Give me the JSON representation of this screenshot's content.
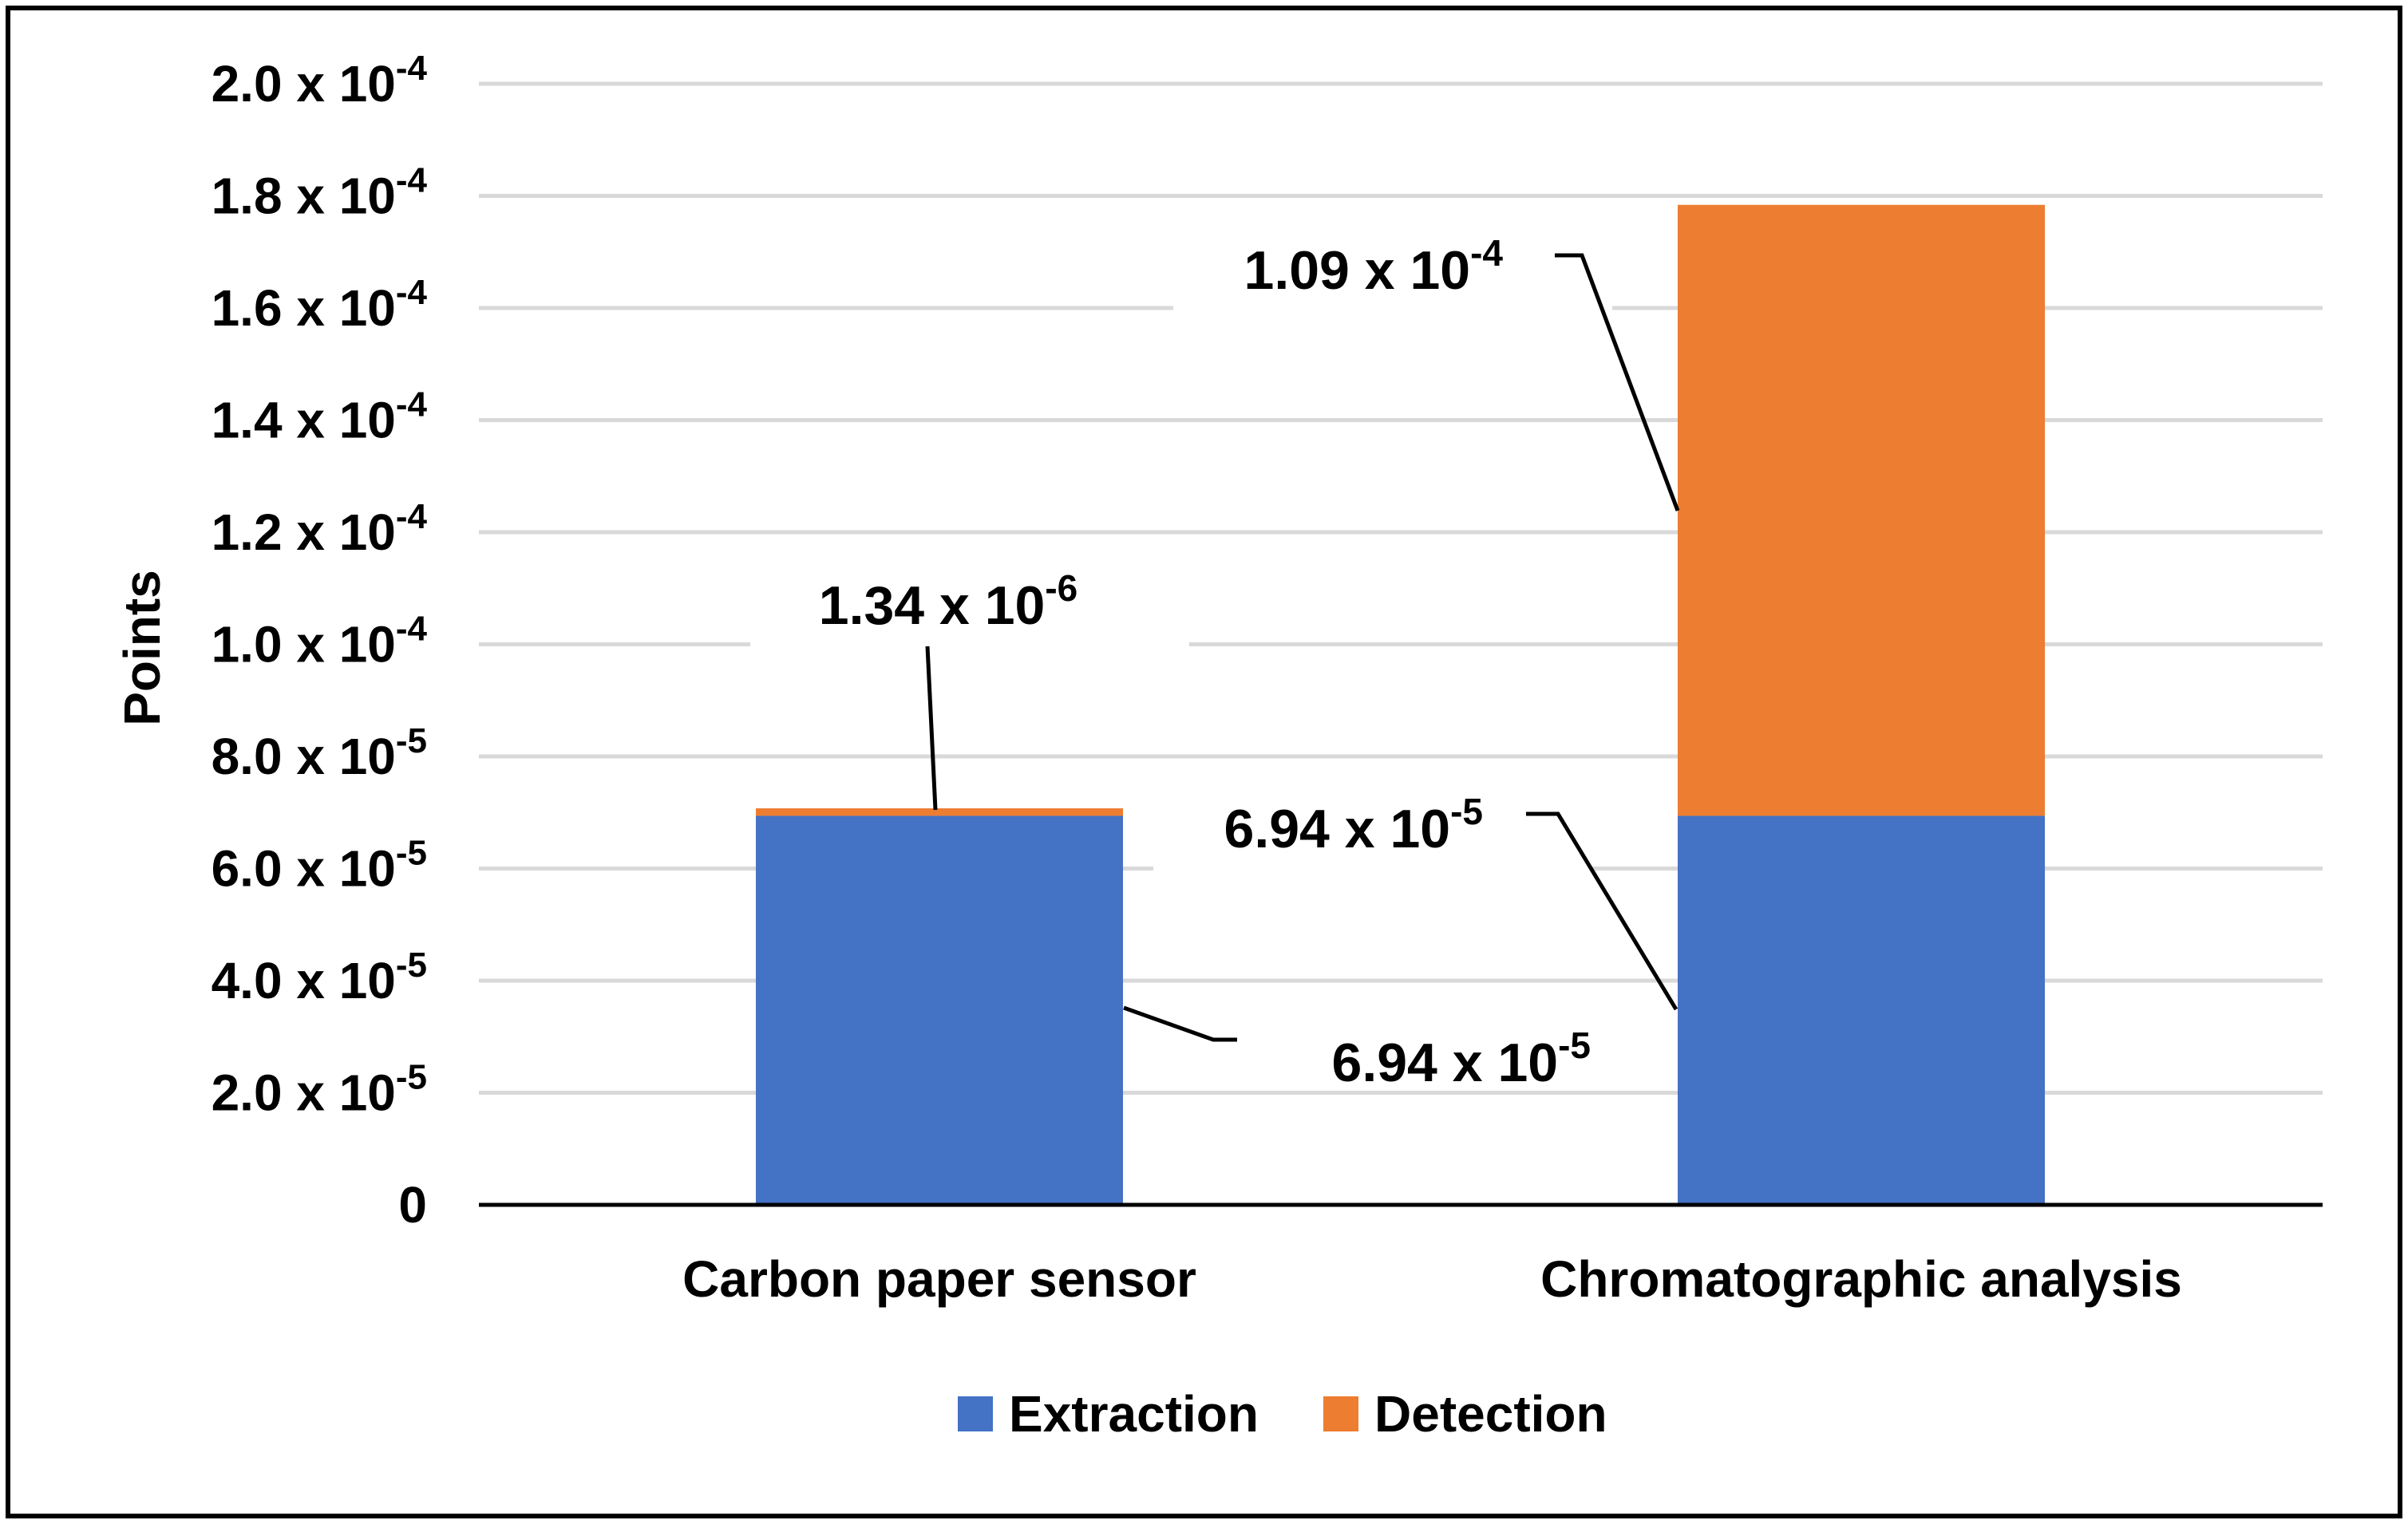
{
  "chart_data": {
    "type": "bar",
    "stacked": true,
    "title": "",
    "xlabel": "",
    "ylabel": "Points",
    "ylim": [
      0,
      0.0002
    ],
    "grid": true,
    "legend_position": "bottom-center",
    "categories": [
      "Carbon paper sensor",
      "Chromatographic analysis"
    ],
    "series": [
      {
        "name": "Extraction",
        "color": "#4472C4",
        "values": [
          6.94e-05,
          6.94e-05
        ]
      },
      {
        "name": "Detection",
        "color": "#ED7D31",
        "values": [
          1.34e-06,
          0.000109
        ]
      }
    ],
    "y_ticks": [
      {
        "value": 0,
        "mantissa": "0",
        "exponent": ""
      },
      {
        "value": 2e-05,
        "mantissa": "2.0 x 10",
        "exponent": "-5"
      },
      {
        "value": 4e-05,
        "mantissa": "4.0 x 10",
        "exponent": "-5"
      },
      {
        "value": 6e-05,
        "mantissa": "6.0 x 10",
        "exponent": "-5"
      },
      {
        "value": 8e-05,
        "mantissa": "8.0 x 10",
        "exponent": "-5"
      },
      {
        "value": 0.0001,
        "mantissa": "1.0 x 10",
        "exponent": "-4"
      },
      {
        "value": 0.00012,
        "mantissa": "1.2 x 10",
        "exponent": "-4"
      },
      {
        "value": 0.00014,
        "mantissa": "1.4 x 10",
        "exponent": "-4"
      },
      {
        "value": 0.00016,
        "mantissa": "1.6 x 10",
        "exponent": "-4"
      },
      {
        "value": 0.00018,
        "mantissa": "1.8 x 10",
        "exponent": "-4"
      },
      {
        "value": 0.0002,
        "mantissa": "2.0 x 10",
        "exponent": "-4"
      }
    ],
    "data_labels": [
      {
        "category": 0,
        "series": "Detection",
        "mantissa": "1.34 x 10",
        "exponent": "-6"
      },
      {
        "category": 0,
        "series": "Extraction",
        "mantissa": "6.94 x 10",
        "exponent": "-5"
      },
      {
        "category": 1,
        "series": "Detection",
        "mantissa": "1.09 x 10",
        "exponent": "-4"
      },
      {
        "category": 1,
        "series": "Extraction",
        "mantissa": "6.94 x 10",
        "exponent": "-5"
      }
    ]
  }
}
